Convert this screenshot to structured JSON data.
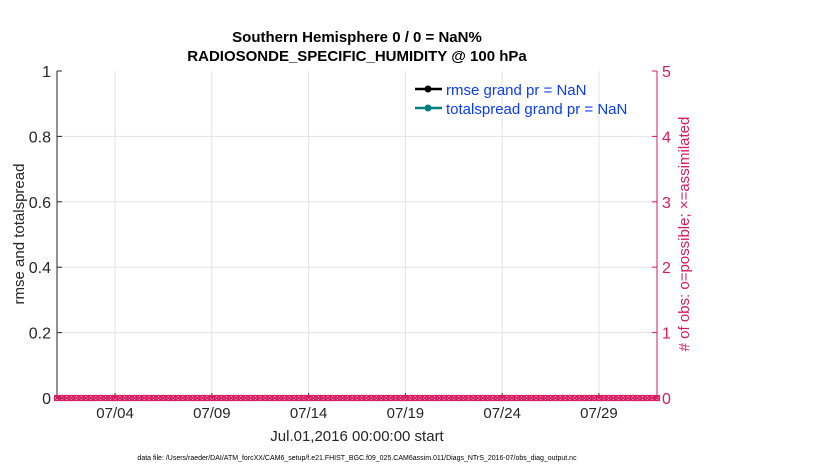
{
  "chart_data": {
    "type": "line",
    "title_line1": "Southern Hemisphere 0 / 0 = NaN%",
    "title_line2": "RADIOSONDE_SPECIFIC_HUMIDITY @ 100 hPa",
    "ylabel_left": "rmse and totalspread",
    "ylabel_right": "# of obs: o=possible; ×=assimilated",
    "xlabel": "Jul.01,2016 00:00:00 start",
    "footnote": "data file: /Users/raeder/DAI/ATM_forcXX/CAM6_setup/f.e21.FHIST_BGC.f09_025.CAM6assim.011/Diags_NTrS_2016-07/obs_diag_output.nc",
    "xlim_days": [
      0,
      31
    ],
    "ylim_left": [
      0,
      1
    ],
    "ylim_right": [
      0,
      5
    ],
    "grid": true,
    "x_ticks": [
      {
        "day": 3,
        "label": "07/04"
      },
      {
        "day": 8,
        "label": "07/09"
      },
      {
        "day": 13,
        "label": "07/14"
      },
      {
        "day": 18,
        "label": "07/19"
      },
      {
        "day": 23,
        "label": "07/24"
      },
      {
        "day": 28,
        "label": "07/29"
      }
    ],
    "y_ticks_left": [
      "0",
      "0.2",
      "0.4",
      "0.6",
      "0.8",
      "1"
    ],
    "y_ticks_right": [
      "0",
      "1",
      "2",
      "3",
      "4",
      "5"
    ],
    "legend_position": "top-right",
    "series": [
      {
        "name": "rmse grand pr = NaN",
        "color": "#000000",
        "values": []
      },
      {
        "name": "totalspread grand pr = NaN",
        "color": "#008080",
        "values": []
      }
    ],
    "obs_counts": {
      "color": "#D81B60",
      "start_day": 0,
      "step_days": 0.25,
      "count": 125,
      "possible": 0,
      "assimilated": 0
    }
  }
}
